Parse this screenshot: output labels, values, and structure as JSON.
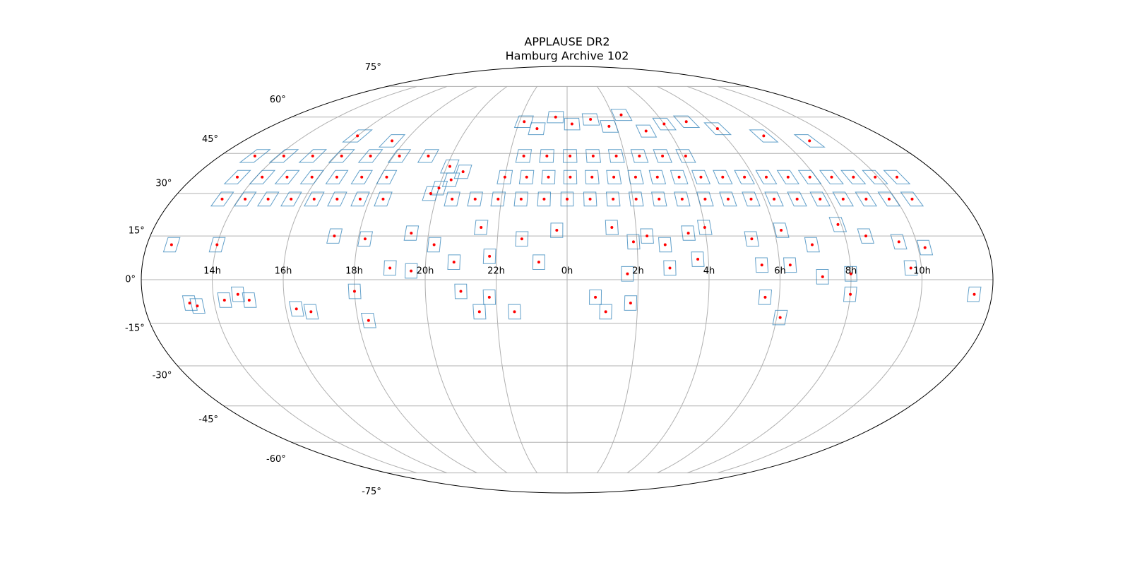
{
  "chart_data": {
    "type": "scatter",
    "projection": "mollweide",
    "title": "APPLAUSE DR2",
    "subtitle": "Hamburg Archive 102",
    "x": [
      20.5,
      21.2,
      21.9,
      22.6,
      23.3,
      0,
      0.7,
      1.4,
      2.1,
      2.8,
      3.5,
      4.2,
      4.9,
      5.6,
      6.3,
      7,
      7.7,
      8.4,
      9.1,
      9.8,
      10.5,
      13.5,
      14.2,
      14.9,
      15.6,
      16.3,
      17,
      17.7,
      18.4,
      22,
      22.7,
      23.4,
      0.1,
      0.8,
      1.5,
      2.2,
      2.9,
      3.6,
      4.3,
      5,
      5.7,
      6.4,
      7.1,
      7.8,
      8.5,
      9.2,
      9.9,
      10.6,
      13.4,
      14.2,
      15,
      15.8,
      16.6,
      17.4,
      18.2,
      13.2,
      14.2,
      15.2,
      16.2,
      17.2,
      18.2,
      19.2,
      22.5,
      23.3,
      0.1,
      0.9,
      1.7,
      2.5,
      3.3,
      4.1,
      22.2,
      22.8,
      23.5,
      0.2,
      1,
      1.7,
      2.4,
      3.1,
      4,
      5,
      6,
      7.5,
      9,
      16,
      17.5,
      20,
      20.3,
      20.6,
      19.8,
      20.1,
      19.5,
      20.2,
      21.5,
      22.7,
      23.7,
      1.3,
      1.9,
      2.3,
      2.8,
      3.5,
      4,
      5.3,
      6.2,
      7,
      7.9,
      8.6,
      9.5,
      10.2,
      14,
      17.3,
      18.2,
      12.7,
      19,
      19.6,
      20.8,
      21.8,
      23.2,
      1.7,
      2.9,
      3.7,
      5.5,
      6.3,
      7.2,
      8,
      9.7,
      13.3,
      13.5,
      14.3,
      14.7,
      15,
      16.3,
      16.7,
      18,
      18.3,
      21,
      21.5,
      21.8,
      22.5,
      0.8,
      1.1,
      1.8,
      5.6,
      6.1,
      8,
      11.5
    ],
    "y": [
      28,
      28,
      28,
      28,
      28,
      28,
      28,
      28,
      28,
      28,
      28,
      28,
      28,
      28,
      28,
      28,
      28,
      28,
      28,
      28,
      28,
      28,
      28,
      28,
      28,
      28,
      28,
      28,
      28,
      36,
      36,
      36,
      36,
      36,
      36,
      36,
      36,
      36,
      36,
      36,
      36,
      36,
      36,
      36,
      36,
      36,
      36,
      36,
      36,
      36,
      36,
      36,
      36,
      36,
      36,
      44,
      44,
      44,
      44,
      44,
      44,
      44,
      44,
      44,
      44,
      44,
      44,
      44,
      44,
      44,
      58,
      55,
      60,
      57,
      59,
      56,
      61,
      54,
      57,
      58,
      55,
      52,
      50,
      52,
      50,
      32,
      35,
      38,
      30,
      40,
      16,
      12,
      18,
      14,
      17,
      18,
      13,
      15,
      12,
      16,
      18,
      14,
      17,
      12,
      19,
      15,
      13,
      11,
      12,
      15,
      14,
      12,
      4,
      3,
      6,
      8,
      6,
      2,
      4,
      7,
      5,
      5,
      1,
      2,
      4,
      -8,
      -9,
      -7,
      -5,
      -7,
      -10,
      -11,
      -4,
      -14,
      -4,
      -11,
      -6,
      -11,
      -6,
      -11,
      -8,
      -6,
      -13,
      -5,
      -5
    ],
    "footprint_deg": 5,
    "color": "#ff0000",
    "footprint_color": "#1f77b4",
    "grid": true,
    "xticks": [
      {
        "value": 14,
        "label": "14h"
      },
      {
        "value": 16,
        "label": "16h"
      },
      {
        "value": 18,
        "label": "18h"
      },
      {
        "value": 20,
        "label": "20h"
      },
      {
        "value": 22,
        "label": "22h"
      },
      {
        "value": 0,
        "label": "0h"
      },
      {
        "value": 2,
        "label": "2h"
      },
      {
        "value": 4,
        "label": "4h"
      },
      {
        "value": 6,
        "label": "6h"
      },
      {
        "value": 8,
        "label": "8h"
      },
      {
        "value": 10,
        "label": "10h"
      }
    ],
    "yticks": [
      {
        "value": -75,
        "label": "-75°"
      },
      {
        "value": -60,
        "label": "-60°"
      },
      {
        "value": -45,
        "label": "-45°"
      },
      {
        "value": -30,
        "label": "-30°"
      },
      {
        "value": -15,
        "label": "-15°"
      },
      {
        "value": 0,
        "label": "0°"
      },
      {
        "value": 15,
        "label": "15°"
      },
      {
        "value": 30,
        "label": "30°"
      },
      {
        "value": 45,
        "label": "45°"
      },
      {
        "value": 60,
        "label": "60°"
      },
      {
        "value": 75,
        "label": "75°"
      }
    ]
  }
}
